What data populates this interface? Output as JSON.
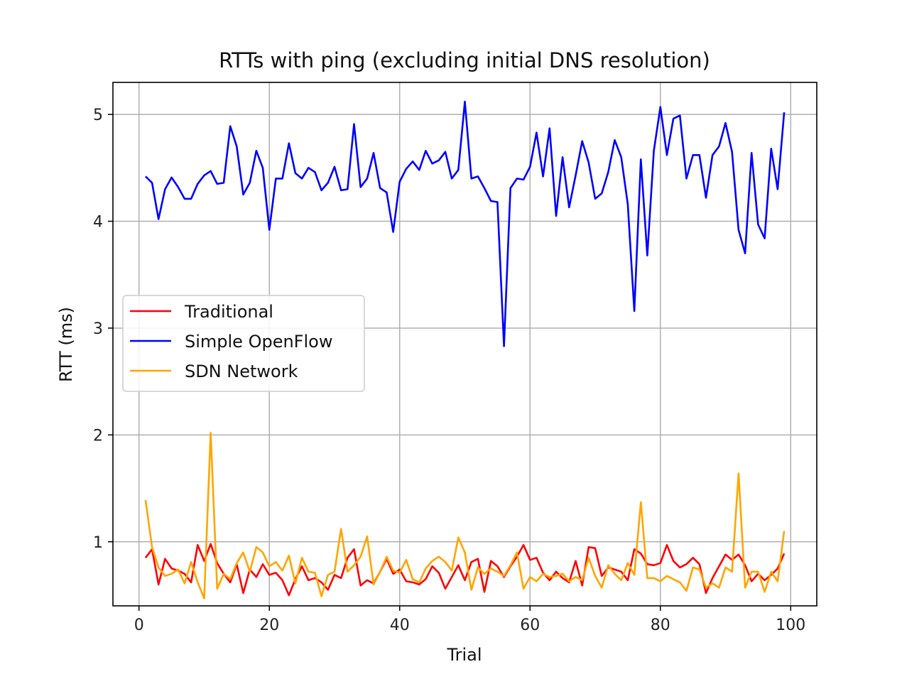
{
  "chart_data": {
    "type": "line",
    "title": "RTTs with ping (excluding initial DNS resolution)",
    "xlabel": "Trial",
    "ylabel": "RTT (ms)",
    "xlim": [
      -4,
      104
    ],
    "ylim": [
      0.4,
      5.3
    ],
    "xticks": [
      0,
      20,
      40,
      60,
      80,
      100
    ],
    "xtick_labels": [
      "0",
      "20",
      "40",
      "60",
      "80",
      "100"
    ],
    "yticks": [
      1,
      2,
      3,
      4,
      5
    ],
    "ytick_labels": [
      "1",
      "2",
      "3",
      "4",
      "5"
    ],
    "grid": true,
    "legend_position": "center-left",
    "x": [
      1,
      2,
      3,
      4,
      5,
      6,
      7,
      8,
      9,
      10,
      11,
      12,
      13,
      14,
      15,
      16,
      17,
      18,
      19,
      20,
      21,
      22,
      23,
      24,
      25,
      26,
      27,
      28,
      29,
      30,
      31,
      32,
      33,
      34,
      35,
      36,
      37,
      38,
      39,
      40,
      41,
      42,
      43,
      44,
      45,
      46,
      47,
      48,
      49,
      50,
      51,
      52,
      53,
      54,
      55,
      56,
      57,
      58,
      59,
      60,
      61,
      62,
      63,
      64,
      65,
      66,
      67,
      68,
      69,
      70,
      71,
      72,
      73,
      74,
      75,
      76,
      77,
      78,
      79,
      80,
      81,
      82,
      83,
      84,
      85,
      86,
      87,
      88,
      89,
      90,
      91,
      92,
      93,
      94,
      95,
      96,
      97,
      98,
      99
    ],
    "series": [
      {
        "name": "Traditional",
        "color": "#ff0000",
        "values": [
          0.85,
          0.93,
          0.6,
          0.84,
          0.75,
          0.73,
          0.7,
          0.62,
          0.97,
          0.82,
          0.98,
          0.8,
          0.7,
          0.62,
          0.79,
          0.52,
          0.74,
          0.67,
          0.79,
          0.69,
          0.71,
          0.64,
          0.5,
          0.65,
          0.77,
          0.64,
          0.66,
          0.62,
          0.55,
          0.69,
          0.66,
          0.85,
          0.93,
          0.59,
          0.64,
          0.61,
          0.72,
          0.84,
          0.7,
          0.74,
          0.63,
          0.62,
          0.6,
          0.65,
          0.77,
          0.71,
          0.56,
          0.67,
          0.78,
          0.64,
          0.81,
          0.84,
          0.53,
          0.82,
          0.77,
          0.67,
          0.77,
          0.86,
          0.97,
          0.83,
          0.85,
          0.71,
          0.64,
          0.72,
          0.66,
          0.62,
          0.82,
          0.59,
          0.95,
          0.94,
          0.68,
          0.76,
          0.74,
          0.72,
          0.64,
          0.93,
          0.89,
          0.79,
          0.78,
          0.8,
          0.97,
          0.82,
          0.76,
          0.79,
          0.85,
          0.79,
          0.52,
          0.66,
          0.77,
          0.88,
          0.83,
          0.88,
          0.78,
          0.63,
          0.7,
          0.64,
          0.69,
          0.75,
          0.89
        ]
      },
      {
        "name": "Simple OpenFlow",
        "color": "#0000ff",
        "values": [
          4.42,
          4.36,
          4.02,
          4.3,
          4.41,
          4.32,
          4.21,
          4.21,
          4.35,
          4.43,
          4.47,
          4.35,
          4.36,
          4.89,
          4.7,
          4.25,
          4.36,
          4.66,
          4.5,
          3.92,
          4.4,
          4.4,
          4.73,
          4.45,
          4.4,
          4.5,
          4.46,
          4.29,
          4.36,
          4.51,
          4.29,
          4.3,
          4.91,
          4.32,
          4.4,
          4.64,
          4.31,
          4.27,
          3.9,
          4.37,
          4.49,
          4.56,
          4.48,
          4.66,
          4.54,
          4.57,
          4.65,
          4.4,
          4.48,
          5.12,
          4.4,
          4.42,
          4.31,
          4.19,
          4.18,
          2.83,
          4.31,
          4.4,
          4.39,
          4.51,
          4.83,
          4.42,
          4.87,
          4.05,
          4.6,
          4.13,
          4.43,
          4.75,
          4.55,
          4.21,
          4.26,
          4.46,
          4.76,
          4.6,
          4.16,
          3.16,
          4.58,
          3.68,
          4.66,
          5.07,
          4.62,
          4.96,
          4.99,
          4.4,
          4.62,
          4.62,
          4.22,
          4.62,
          4.7,
          4.92,
          4.65,
          3.92,
          3.7,
          4.64,
          3.97,
          3.84,
          4.68,
          4.3,
          5.02
        ]
      },
      {
        "name": "SDN Network",
        "color": "#ffa500",
        "values": [
          1.39,
          0.95,
          0.76,
          0.68,
          0.7,
          0.74,
          0.61,
          0.81,
          0.62,
          0.47,
          2.02,
          0.56,
          0.7,
          0.65,
          0.8,
          0.9,
          0.72,
          0.95,
          0.9,
          0.77,
          0.81,
          0.73,
          0.87,
          0.61,
          0.85,
          0.72,
          0.71,
          0.49,
          0.69,
          0.72,
          1.12,
          0.72,
          0.78,
          0.86,
          1.05,
          0.6,
          0.72,
          0.86,
          0.73,
          0.71,
          0.83,
          0.65,
          0.62,
          0.75,
          0.82,
          0.86,
          0.81,
          0.73,
          1.04,
          0.9,
          0.55,
          0.76,
          0.7,
          0.75,
          0.72,
          0.68,
          0.78,
          0.9,
          0.56,
          0.67,
          0.63,
          0.7,
          0.67,
          0.68,
          0.7,
          0.63,
          0.67,
          0.64,
          0.85,
          0.68,
          0.57,
          0.78,
          0.7,
          0.64,
          0.8,
          0.69,
          1.37,
          0.66,
          0.66,
          0.63,
          0.68,
          0.65,
          0.62,
          0.54,
          0.76,
          0.74,
          0.57,
          0.61,
          0.57,
          0.76,
          0.72,
          1.64,
          0.57,
          0.72,
          0.72,
          0.53,
          0.72,
          0.63,
          1.1
        ]
      }
    ]
  }
}
